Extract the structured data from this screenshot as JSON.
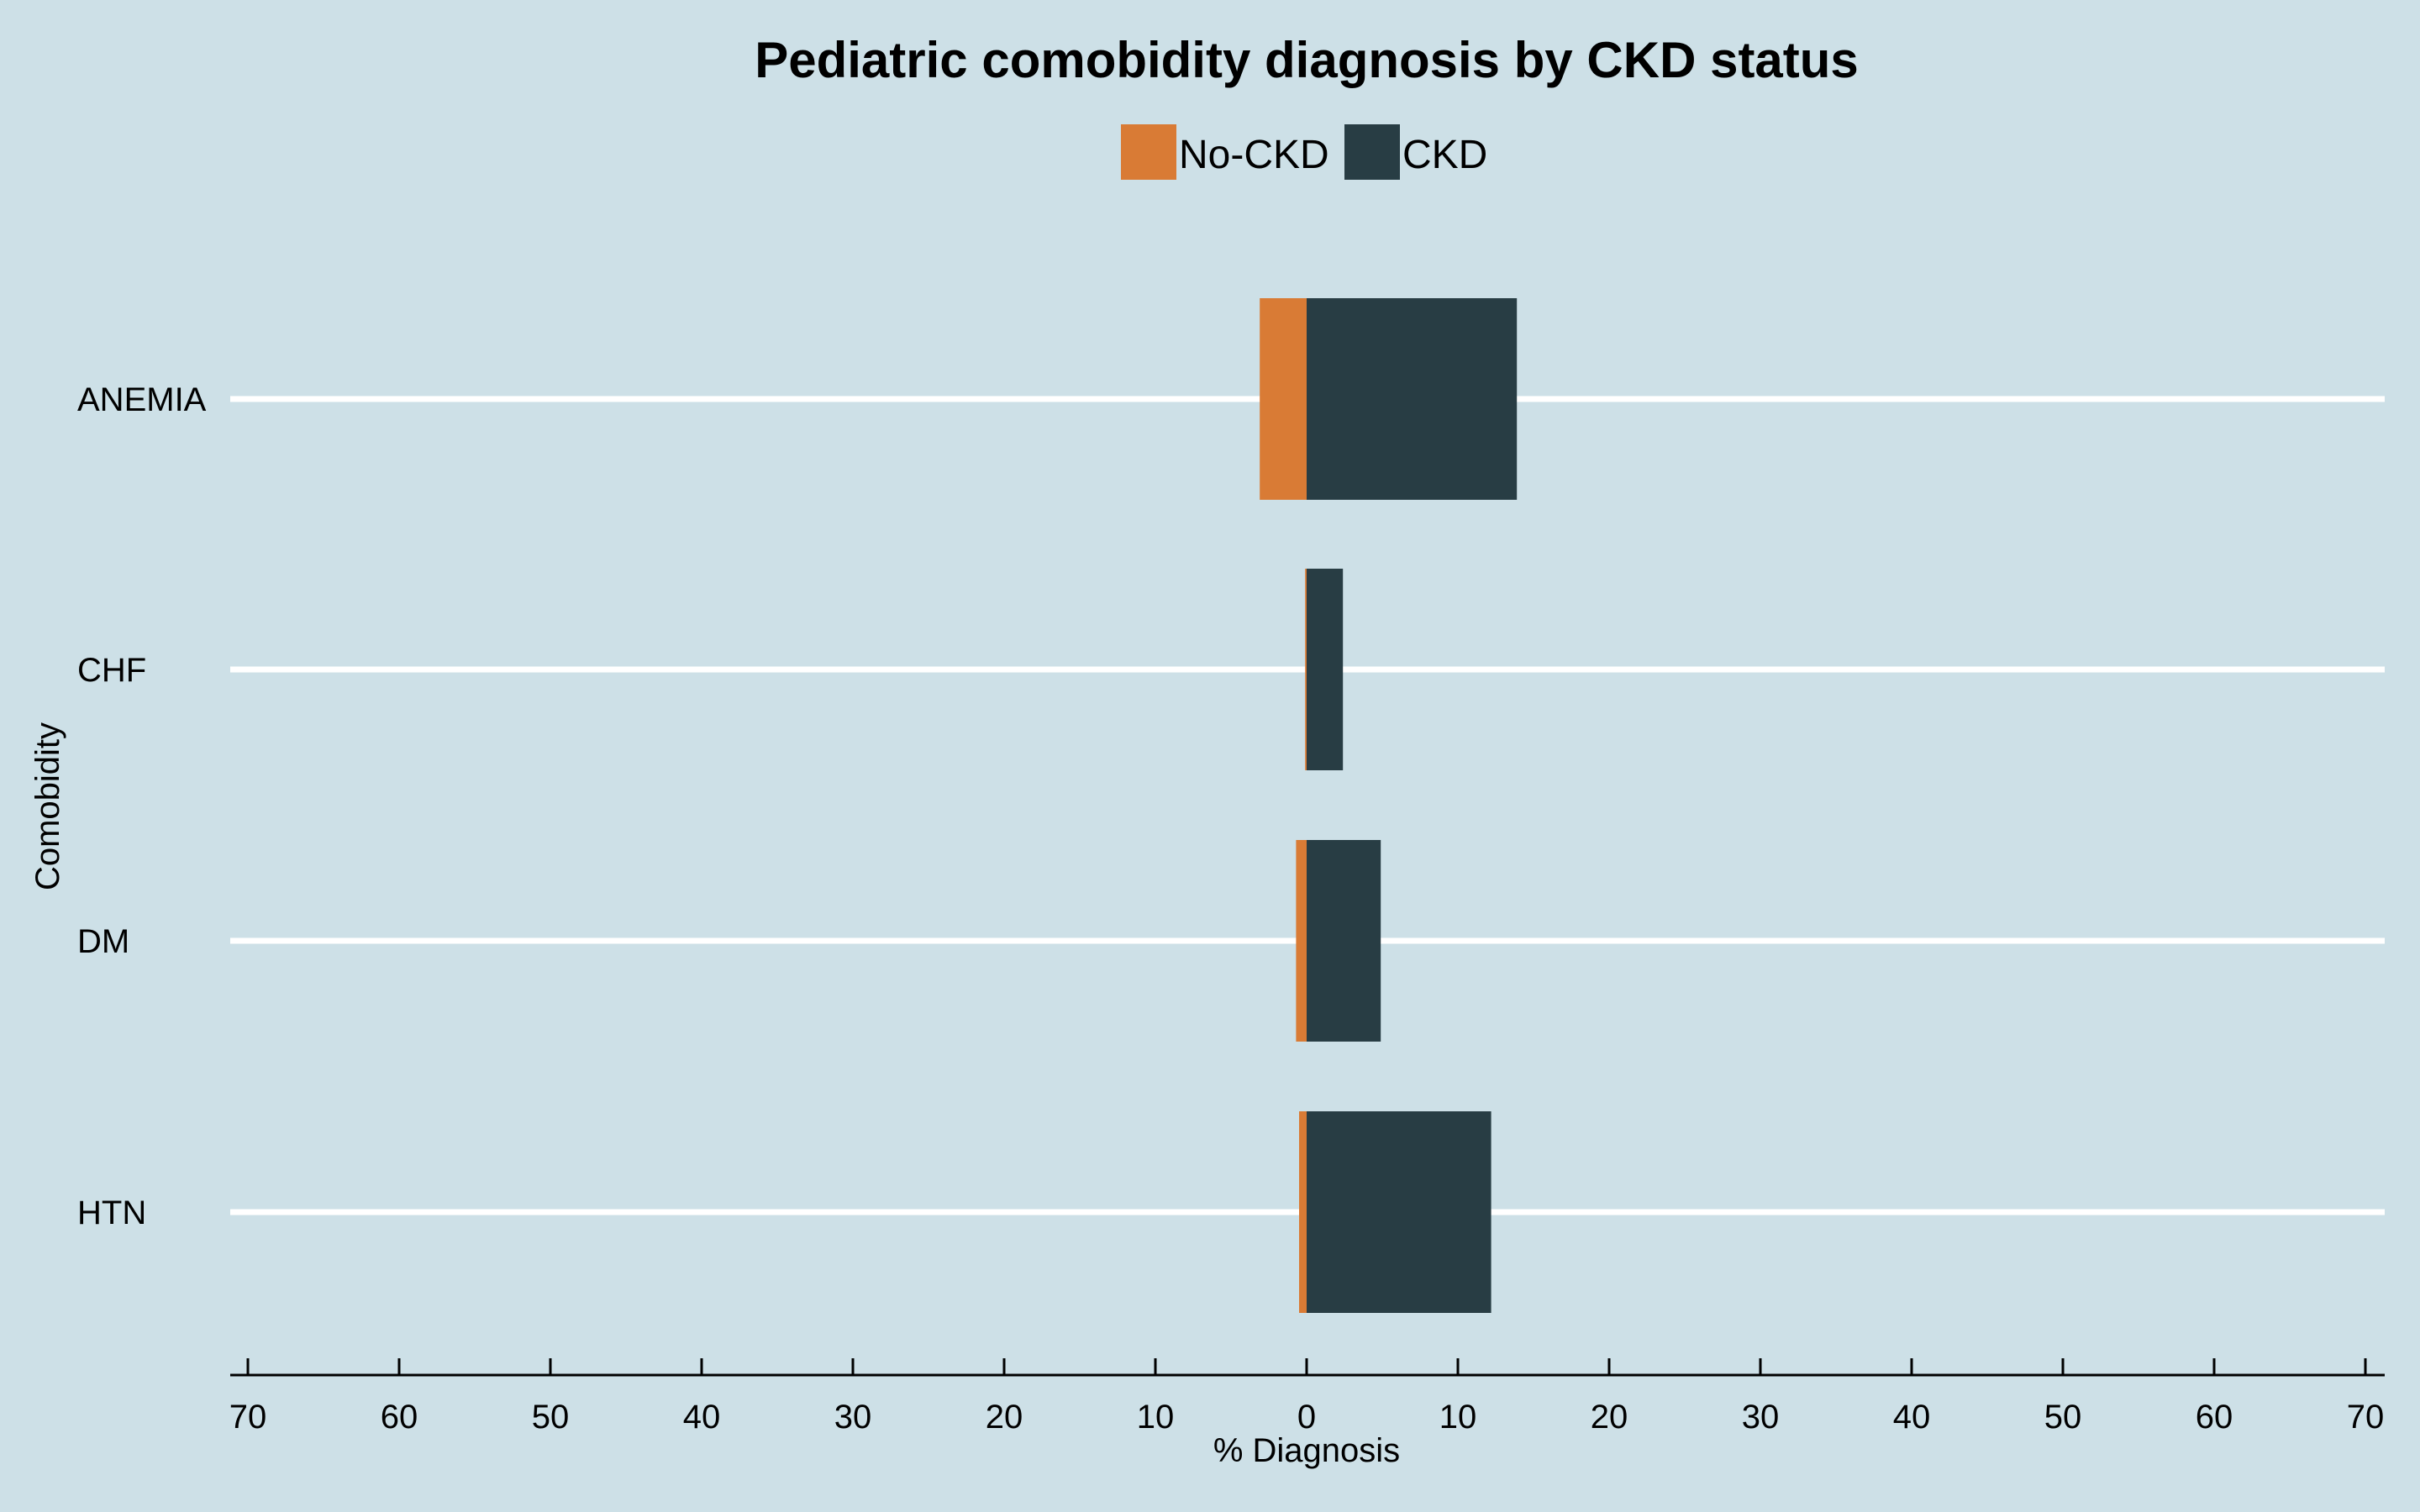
{
  "colors": {
    "background": "#cde0e7",
    "no_ckd": "#d97b35",
    "ckd": "#283d44",
    "gridline": "#ffffff",
    "axis": "#000000"
  },
  "chart_data": {
    "type": "bar",
    "orientation": "horizontal",
    "layout": "back-to-back (diverging)",
    "title": "Pediatric comobidity diagnosis by CKD status",
    "xlabel": "% Diagnosis",
    "ylabel": "Comobidity",
    "xlim": [
      -70,
      70
    ],
    "x_ticks": [
      -70,
      -60,
      -50,
      -40,
      -30,
      -20,
      -10,
      0,
      10,
      20,
      30,
      40,
      50,
      60,
      70
    ],
    "x_tick_labels": [
      "70",
      "60",
      "50",
      "40",
      "30",
      "20",
      "10",
      "0",
      "10",
      "20",
      "30",
      "40",
      "50",
      "60",
      "70"
    ],
    "categories": [
      "ANEMIA",
      "CHF",
      "DM",
      "HTN"
    ],
    "series": [
      {
        "name": "No-CKD",
        "side": "left",
        "color": "#d97b35",
        "values": [
          3.1,
          0.1,
          0.7,
          0.5
        ]
      },
      {
        "name": "CKD",
        "side": "right",
        "color": "#283d44",
        "values": [
          13.9,
          2.4,
          4.9,
          12.2
        ]
      }
    ],
    "legend": {
      "position": "top-center",
      "entries": [
        "No-CKD",
        "CKD"
      ]
    },
    "grid": {
      "horizontal": true,
      "vertical": false
    }
  }
}
